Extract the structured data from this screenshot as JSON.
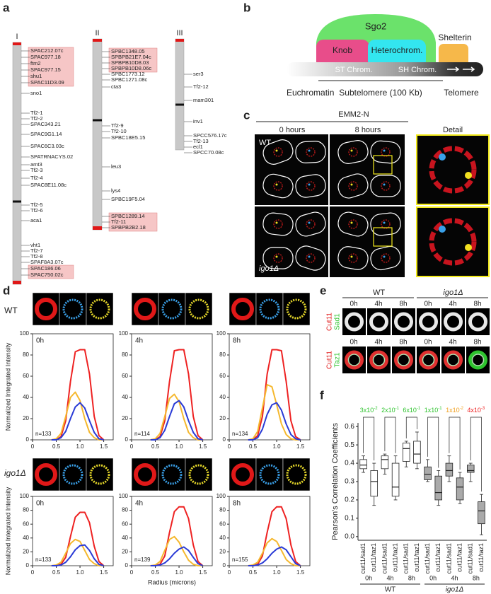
{
  "panel_a": {
    "label": "a",
    "chromosomes": [
      {
        "name": "I",
        "genes": [
          "SPAC212.07c",
          "SPAC977.18",
          "ftm2",
          "SPAC977.15",
          "shu1",
          "SPAC11D3.09",
          "sno1",
          "Tf2-1",
          "Tf2-2",
          "SPAC343.21",
          "SPAC9G1.14",
          "SPAC6C3.03c",
          "SPATRNACYS.02",
          "amt3",
          "Tf2-3",
          "Tf2-4",
          "SPAC8E11.08c",
          "Tf2-5",
          "Tf2-6",
          "aca1",
          "vht1",
          "Tf2-7",
          "Tf2-8",
          "SPAF8A3.07c",
          "SPAC186.06",
          "SPAC750.02c"
        ]
      },
      {
        "name": "II",
        "genes": [
          "SPBC1348.05",
          "SPBPB21E7.04c",
          "SPBPB10D8.03",
          "SPBPB10D8.06c",
          "SPBC1773.12",
          "SPBC1271.08c",
          "cta3",
          "Tf2-9",
          "Tf2-10",
          "SPBC18E5.15",
          "leu3",
          "lys4",
          "SPBC19F5.04",
          "SPBC1289.14",
          "Tf2-11",
          "SPBPB2B2.18"
        ]
      },
      {
        "name": "III",
        "genes": [
          "ser3",
          "Tf2-12",
          "mam301",
          "inv1",
          "SPCC576.17c",
          "Tf2-13",
          "ecl1",
          "SPCC70.08c"
        ]
      }
    ]
  },
  "panel_b": {
    "label": "b",
    "sgo2": "Sgo2",
    "knob": "Knob",
    "heterochrom": "Heterochrom.",
    "shelterin": "Shelterin",
    "st": "ST Chrom.",
    "sh": "SH Chrom.",
    "euchromatin": "Euchromatin",
    "subtelomere": "Subtelomere (100 Kb)",
    "telomere": "Telomere"
  },
  "panel_c": {
    "label": "c",
    "title": "EMM2-N",
    "columns": [
      "0 hours",
      "8 hours",
      "Detail"
    ],
    "rows": [
      "WT",
      "igo1Δ"
    ]
  },
  "panel_d": {
    "label": "d",
    "row_labels": [
      "WT",
      "igo1Δ"
    ],
    "y_label": "Normalized Integrated Intensity",
    "x_label": "Radius (microns)",
    "charts": [
      {
        "type": "line",
        "time": "0h",
        "n": "n=133",
        "x": [
          0.4,
          0.5,
          0.6,
          0.7,
          0.8,
          0.9,
          1.0,
          1.1,
          1.2,
          1.3,
          1.4,
          1.5
        ],
        "xlim": [
          0,
          1.7
        ],
        "xticks": [
          0,
          0.5,
          {
            "value": 1,
            "label": "1.0"
          },
          1.5
        ],
        "ylim": [
          0,
          100
        ],
        "yticks": [
          0,
          20,
          40,
          60,
          80,
          100
        ],
        "series": [
          {
            "color": "#ee2222",
            "values": [
              0,
              0,
              3,
              18,
              55,
              83,
              85,
              85,
              62,
              22,
              4,
              0
            ]
          },
          {
            "color": "#f5b82e",
            "values": [
              0,
              1,
              6,
              22,
              40,
              45,
              37,
              20,
              7,
              2,
              0,
              0
            ]
          },
          {
            "color": "#2a3bd6",
            "values": [
              0,
              0,
              2,
              8,
              20,
              31,
              35,
              30,
              18,
              7,
              1,
              0
            ]
          }
        ]
      },
      {
        "type": "line",
        "time": "4h",
        "n": "n=114",
        "x": [
          0.4,
          0.5,
          0.6,
          0.7,
          0.8,
          0.9,
          1.0,
          1.1,
          1.2,
          1.3,
          1.4,
          1.5
        ],
        "xlim": [
          0,
          1.7
        ],
        "xticks": [
          0,
          0.5,
          {
            "value": 1,
            "label": "1.0"
          },
          1.5
        ],
        "ylim": [
          0,
          100
        ],
        "yticks": [
          0,
          20,
          40,
          60,
          80,
          100
        ],
        "series": [
          {
            "color": "#ee2222",
            "values": [
              0,
              0,
              3,
              18,
              55,
              84,
              85,
              85,
              62,
              22,
              4,
              0
            ]
          },
          {
            "color": "#f5b82e",
            "values": [
              0,
              1,
              6,
              22,
              39,
              43,
              36,
              20,
              7,
              2,
              0,
              0
            ]
          },
          {
            "color": "#2a3bd6",
            "values": [
              0,
              0,
              2,
              9,
              22,
              34,
              37,
              31,
              18,
              7,
              1,
              0
            ]
          }
        ]
      },
      {
        "type": "line",
        "time": "8h",
        "n": "n=134",
        "x": [
          0.4,
          0.5,
          0.6,
          0.7,
          0.8,
          0.9,
          1.0,
          1.1,
          1.2,
          1.3,
          1.4,
          1.5
        ],
        "xlim": [
          0,
          1.7
        ],
        "xticks": [
          0,
          0.5,
          {
            "value": 1,
            "label": "1.0"
          },
          1.5
        ],
        "ylim": [
          0,
          100
        ],
        "yticks": [
          0,
          20,
          40,
          60,
          80,
          100
        ],
        "series": [
          {
            "color": "#ee2222",
            "values": [
              0,
              0,
              4,
              22,
              62,
              85,
              85,
              84,
              55,
              18,
              3,
              0
            ]
          },
          {
            "color": "#f5b82e",
            "values": [
              0,
              1,
              8,
              30,
              52,
              50,
              33,
              15,
              5,
              1,
              0,
              0
            ]
          },
          {
            "color": "#2a3bd6",
            "values": [
              0,
              0,
              2,
              10,
              24,
              33,
              35,
              28,
              15,
              5,
              1,
              0
            ]
          }
        ]
      },
      {
        "type": "line",
        "time": "0h",
        "n": "n=133",
        "x": [
          0.4,
          0.5,
          0.6,
          0.7,
          0.8,
          0.9,
          1.0,
          1.1,
          1.2,
          1.3,
          1.4,
          1.5
        ],
        "xlim": [
          0,
          1.7
        ],
        "xticks": [
          0,
          0.5,
          {
            "value": 1,
            "label": "1.0"
          },
          1.5
        ],
        "ylim": [
          0,
          100
        ],
        "yticks": [
          0,
          20,
          40,
          60,
          80,
          100
        ],
        "series": [
          {
            "color": "#ee2222",
            "values": [
              0,
              0,
              2,
              12,
              42,
              70,
              77,
              77,
              62,
              28,
              6,
              0
            ]
          },
          {
            "color": "#f5b82e",
            "values": [
              0,
              1,
              5,
              18,
              32,
              38,
              35,
              22,
              9,
              3,
              0,
              0
            ]
          },
          {
            "color": "#2a3bd6",
            "values": [
              0,
              0,
              1,
              5,
              13,
              23,
              29,
              30,
              22,
              10,
              2,
              0
            ]
          }
        ]
      },
      {
        "type": "line",
        "time": "4h",
        "n": "n=139",
        "x": [
          0.4,
          0.5,
          0.6,
          0.7,
          0.8,
          0.9,
          1.0,
          1.1,
          1.2,
          1.3,
          1.4,
          1.5
        ],
        "xlim": [
          0,
          1.7
        ],
        "xticks": [
          0,
          0.5,
          {
            "value": 1,
            "label": "1.0"
          },
          1.5
        ],
        "ylim": [
          0,
          100
        ],
        "yticks": [
          0,
          20,
          40,
          60,
          80,
          100
        ],
        "series": [
          {
            "color": "#ee2222",
            "values": [
              0,
              0,
              2,
              14,
              48,
              78,
              85,
              85,
              68,
              30,
              6,
              0
            ]
          },
          {
            "color": "#f5b82e",
            "values": [
              0,
              1,
              6,
              22,
              38,
              42,
              34,
              20,
              8,
              2,
              0,
              0
            ]
          },
          {
            "color": "#2a3bd6",
            "values": [
              0,
              0,
              1,
              4,
              10,
              18,
              24,
              27,
              22,
              12,
              3,
              0
            ]
          }
        ]
      },
      {
        "type": "line",
        "time": "8h",
        "n": "n=155",
        "x": [
          0.4,
          0.5,
          0.6,
          0.7,
          0.8,
          0.9,
          1.0,
          1.1,
          1.2,
          1.3,
          1.4,
          1.5
        ],
        "xlim": [
          0,
          1.7
        ],
        "xticks": [
          0,
          0.5,
          {
            "value": 1,
            "label": "1.0"
          },
          1.5
        ],
        "ylim": [
          0,
          100
        ],
        "yticks": [
          0,
          20,
          40,
          60,
          80,
          100
        ],
        "series": [
          {
            "color": "#ee2222",
            "values": [
              0,
              0,
              2,
              14,
              48,
              78,
              85,
              85,
              68,
              30,
              6,
              0
            ]
          },
          {
            "color": "#f5b82e",
            "values": [
              0,
              1,
              5,
              18,
              33,
              39,
              35,
              22,
              9,
              3,
              0,
              0
            ]
          },
          {
            "color": "#2a3bd6",
            "values": [
              0,
              0,
              1,
              4,
              10,
              18,
              24,
              27,
              23,
              13,
              3,
              0
            ]
          }
        ]
      }
    ]
  },
  "panel_e": {
    "label": "e",
    "groups": [
      "WT",
      "igo1Δ"
    ],
    "times": [
      "0h",
      "4h",
      "8h"
    ],
    "rows": [
      [
        "Cut11",
        "Sad1"
      ],
      [
        "Cut11",
        "Taz1"
      ]
    ]
  },
  "panel_f": {
    "label": "f",
    "chart": {
      "type": "box",
      "y_label": "Pearson's Correlation Coefficients",
      "ylim": [
        -0.02,
        0.62
      ],
      "yticks": [
        {
          "value": 0,
          "label": "0.0"
        },
        0.1,
        0.2,
        0.3,
        0.4,
        0.5,
        0.6
      ],
      "categories": [
        "cut11/sad1",
        "cut11/taz1",
        "cut11/sad1",
        "cut11/taz1",
        "cut11/sad1",
        "cut11/taz1",
        "cut11/sad1",
        "cut11/taz1",
        "cut11/sad1",
        "cut11/taz1",
        "cut11/sad1",
        "cut11/taz1"
      ],
      "time_labels": [
        "0h",
        "4h",
        "8h",
        "0h",
        "4h",
        "8h"
      ],
      "group_labels": [
        "WT",
        "igo1Δ"
      ],
      "colors": [
        "#ffffff",
        "#ffffff",
        "#ffffff",
        "#ffffff",
        "#ffffff",
        "#ffffff",
        "#aaaaaa",
        "#aaaaaa",
        "#aaaaaa",
        "#aaaaaa",
        "#aaaaaa",
        "#aaaaaa"
      ],
      "boxes": [
        {
          "min": 0.35,
          "q1": 0.37,
          "median": 0.39,
          "q3": 0.42,
          "max": 0.44
        },
        {
          "min": 0.17,
          "q1": 0.22,
          "median": 0.3,
          "q3": 0.36,
          "max": 0.4
        },
        {
          "min": 0.34,
          "q1": 0.37,
          "median": 0.42,
          "q3": 0.44,
          "max": 0.45
        },
        {
          "min": 0.2,
          "q1": 0.22,
          "median": 0.27,
          "q3": 0.4,
          "max": 0.44
        },
        {
          "min": 0.38,
          "q1": 0.41,
          "median": 0.48,
          "q3": 0.51,
          "max": 0.52
        },
        {
          "min": 0.37,
          "q1": 0.4,
          "median": 0.45,
          "q3": 0.52,
          "max": 0.57
        },
        {
          "min": 0.3,
          "q1": 0.31,
          "median": 0.34,
          "q3": 0.38,
          "max": 0.42
        },
        {
          "min": 0.17,
          "q1": 0.2,
          "median": 0.24,
          "q3": 0.33,
          "max": 0.36
        },
        {
          "min": 0.3,
          "q1": 0.33,
          "median": 0.36,
          "q3": 0.4,
          "max": 0.44
        },
        {
          "min": 0.18,
          "q1": 0.2,
          "median": 0.27,
          "q3": 0.32,
          "max": 0.35
        },
        {
          "min": 0.3,
          "q1": 0.35,
          "median": 0.36,
          "q3": 0.39,
          "max": 0.4
        },
        {
          "min": 0.01,
          "q1": 0.07,
          "median": 0.14,
          "q3": 0.19,
          "max": 0.23
        }
      ],
      "p_values": [
        {
          "base": "3x10",
          "exp": "-2",
          "color": "#2ec42e"
        },
        {
          "base": "2x10",
          "exp": "-1",
          "color": "#2ec42e"
        },
        {
          "base": "6x10",
          "exp": "-1",
          "color": "#2ec42e"
        },
        {
          "base": "1x10",
          "exp": "-1",
          "color": "#2ec42e"
        },
        {
          "base": "1x10",
          "exp": "-2",
          "color": "#f0a020"
        },
        {
          "base": "4x10",
          "exp": "-3",
          "color": "#ee2222"
        }
      ]
    }
  }
}
